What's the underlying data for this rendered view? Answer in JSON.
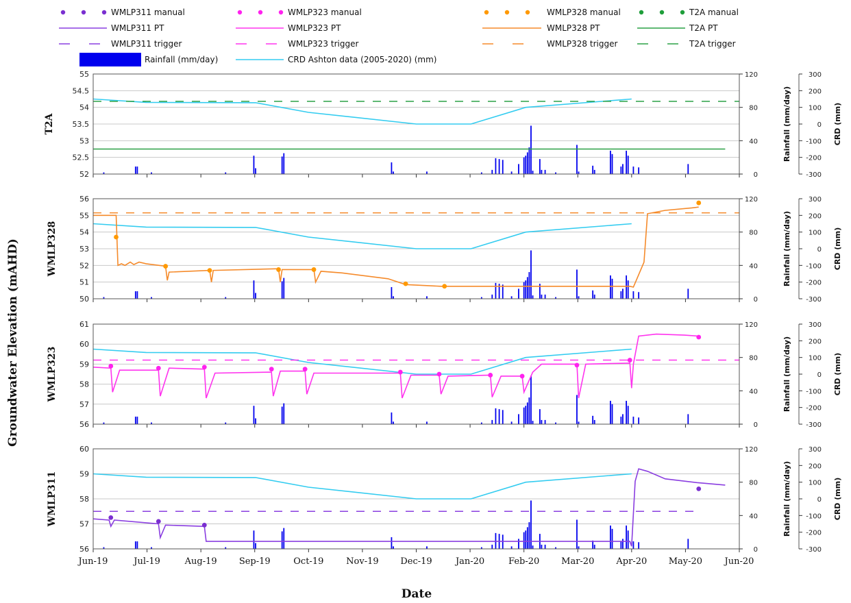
{
  "chart_data": {
    "type": "line",
    "ylabel": "Groundwater Elevation (mAHD)",
    "xlabel": "Date",
    "x_ticks": [
      "Jun-19",
      "Jul-19",
      "Aug-19",
      "Sep-19",
      "Oct-19",
      "Nov-19",
      "Dec-19",
      "Jan-20",
      "Feb-20",
      "Mar-20",
      "Apr-20",
      "May-20",
      "Jun-20"
    ],
    "x_range": [
      "2019-06-01",
      "2020-06-01"
    ],
    "right_axis_1": {
      "label": "Rainfall (mm/day)",
      "ylim": [
        0,
        120
      ],
      "ticks": [
        "0",
        "40",
        "80",
        "120"
      ]
    },
    "right_axis_2": {
      "label": "CRD (mm)",
      "ylim": [
        -300,
        300
      ],
      "ticks": [
        "-300",
        "-200",
        "-100",
        "0",
        "100",
        "200",
        "300"
      ]
    },
    "legend": [
      {
        "label": "WMLP311 manual",
        "kind": "dots",
        "color": "#7a2fd0"
      },
      {
        "label": "WMLP323 manual",
        "kind": "dots",
        "color": "#ff22ee"
      },
      {
        "label": "WMLP328 manual",
        "kind": "dots",
        "color": "#ff9900"
      },
      {
        "label": "T2A manual",
        "kind": "dots",
        "color": "#1e9e3a"
      },
      {
        "label": "WMLP311 PT",
        "kind": "line",
        "color": "#8a3ee0"
      },
      {
        "label": "WMLP323 PT",
        "kind": "line",
        "color": "#ff33ee"
      },
      {
        "label": "WMLP328 PT",
        "kind": "line",
        "color": "#f58a2a"
      },
      {
        "label": "T2A PT",
        "kind": "line",
        "color": "#2aa045"
      },
      {
        "label": "WMLP311 trigger",
        "kind": "dash",
        "color": "#8a3ee0"
      },
      {
        "label": "WMLP323 trigger",
        "kind": "dash",
        "color": "#ff33ee"
      },
      {
        "label": "WMLP328 trigger",
        "kind": "dash",
        "color": "#f58a2a"
      },
      {
        "label": "T2A trigger",
        "kind": "dash",
        "color": "#2aa045"
      },
      {
        "label": "Rainfall (mm/day)",
        "kind": "bar",
        "color": "#0000ee"
      },
      {
        "label": "CRD Ashton data (2005-2020) (mm)",
        "kind": "line",
        "color": "#33ccf0"
      }
    ],
    "rainfall": [
      [
        "2019-06-07",
        2
      ],
      [
        "2019-06-25",
        9
      ],
      [
        "2019-06-26",
        9
      ],
      [
        "2019-07-04",
        2
      ],
      [
        "2019-08-15",
        2
      ],
      [
        "2019-08-31",
        22
      ],
      [
        "2019-09-01",
        7
      ],
      [
        "2019-09-16",
        21
      ],
      [
        "2019-09-17",
        25
      ],
      [
        "2019-11-17",
        14
      ],
      [
        "2019-11-18",
        3
      ],
      [
        "2019-12-07",
        3
      ],
      [
        "2020-01-07",
        2
      ],
      [
        "2020-01-13",
        5
      ],
      [
        "2020-01-15",
        19
      ],
      [
        "2020-01-17",
        18
      ],
      [
        "2020-01-19",
        17
      ],
      [
        "2020-01-24",
        3
      ],
      [
        "2020-01-28",
        12
      ],
      [
        "2020-01-31",
        20
      ],
      [
        "2020-02-01",
        22
      ],
      [
        "2020-02-02",
        26
      ],
      [
        "2020-02-03",
        32
      ],
      [
        "2020-02-04",
        58
      ],
      [
        "2020-02-05",
        4
      ],
      [
        "2020-02-09",
        18
      ],
      [
        "2020-02-10",
        5
      ],
      [
        "2020-02-12",
        5
      ],
      [
        "2020-02-18",
        2
      ],
      [
        "2020-03-01",
        35
      ],
      [
        "2020-03-02",
        3
      ],
      [
        "2020-03-10",
        10
      ],
      [
        "2020-03-11",
        5
      ],
      [
        "2020-03-20",
        28
      ],
      [
        "2020-03-21",
        24
      ],
      [
        "2020-03-26",
        9
      ],
      [
        "2020-03-27",
        12
      ],
      [
        "2020-03-29",
        28
      ],
      [
        "2020-03-30",
        22
      ],
      [
        "2020-04-02",
        9
      ],
      [
        "2020-04-05",
        8
      ],
      [
        "2020-05-03",
        12
      ]
    ],
    "crd": [
      [
        "2019-06-01",
        150
      ],
      [
        "2019-07-01",
        130
      ],
      [
        "2019-09-01",
        128
      ],
      [
        "2019-10-01",
        70
      ],
      [
        "2019-12-01",
        0
      ],
      [
        "2020-01-01",
        0
      ],
      [
        "2020-02-01",
        100
      ],
      [
        "2020-04-01",
        150
      ]
    ],
    "panels": [
      {
        "name": "T2A",
        "ylabel": "T2A",
        "ylim": [
          52,
          55
        ],
        "yticks": [
          "52",
          "52.5",
          "53",
          "53.5",
          "54",
          "54.5",
          "55"
        ],
        "trigger": 54.18,
        "trigger_color": "#2aa045",
        "trigger_range": [
          "2019-06-01",
          "2020-06-01"
        ],
        "pt_color": "#2aa045",
        "pt": [
          [
            "2019-06-01",
            52.75
          ],
          [
            "2020-05-24",
            52.75
          ]
        ],
        "manual_color": "#1e9e3a",
        "manual": []
      },
      {
        "name": "WMLP328",
        "ylabel": "WMLP328",
        "ylim": [
          50,
          56
        ],
        "yticks": [
          "50",
          "51",
          "52",
          "53",
          "54",
          "55",
          "56"
        ],
        "trigger": 55.15,
        "trigger_color": "#f58a2a",
        "trigger_range": [
          "2019-06-01",
          "2020-06-01"
        ],
        "pt_color": "#f58a2a",
        "pt": [
          [
            "2019-06-01",
            55.0
          ],
          [
            "2019-06-14",
            55.0
          ],
          [
            "2019-06-15",
            52.0
          ],
          [
            "2019-06-17",
            52.1
          ],
          [
            "2019-06-19",
            52.0
          ],
          [
            "2019-06-22",
            52.2
          ],
          [
            "2019-06-24",
            52.05
          ],
          [
            "2019-06-27",
            52.2
          ],
          [
            "2019-07-01",
            52.1
          ],
          [
            "2019-07-12",
            51.95
          ],
          [
            "2019-07-13",
            51.1
          ],
          [
            "2019-07-14",
            51.6
          ],
          [
            "2019-08-06",
            51.7
          ],
          [
            "2019-08-07",
            51.0
          ],
          [
            "2019-08-08",
            51.7
          ],
          [
            "2019-09-14",
            51.8
          ],
          [
            "2019-09-15",
            51.0
          ],
          [
            "2019-09-16",
            51.75
          ],
          [
            "2019-10-04",
            51.75
          ],
          [
            "2019-10-05",
            51.0
          ],
          [
            "2019-10-08",
            51.65
          ],
          [
            "2019-10-20",
            51.55
          ],
          [
            "2019-11-15",
            51.2
          ],
          [
            "2019-11-25",
            50.85
          ],
          [
            "2019-12-15",
            50.75
          ],
          [
            "2020-03-31",
            50.75
          ],
          [
            "2020-04-02",
            50.7
          ],
          [
            "2020-04-04",
            51.2
          ],
          [
            "2020-04-08",
            52.2
          ],
          [
            "2020-04-10",
            55.1
          ],
          [
            "2020-04-20",
            55.3
          ],
          [
            "2020-05-05",
            55.45
          ],
          [
            "2020-05-09",
            55.5
          ]
        ],
        "manual_color": "#ff9900",
        "manual": [
          [
            "2019-06-14",
            53.7
          ],
          [
            "2019-07-12",
            51.95
          ],
          [
            "2019-08-06",
            51.7
          ],
          [
            "2019-09-14",
            51.75
          ],
          [
            "2019-10-04",
            51.75
          ],
          [
            "2019-11-25",
            50.9
          ],
          [
            "2019-12-17",
            50.75
          ],
          [
            "2020-05-09",
            55.75
          ]
        ]
      },
      {
        "name": "WMLP323",
        "ylabel": "WMLP323",
        "ylim": [
          56,
          61
        ],
        "yticks": [
          "56",
          "57",
          "58",
          "59",
          "60",
          "61"
        ],
        "trigger": 59.2,
        "trigger_color": "#ff33ee",
        "trigger_range": [
          "2019-06-01",
          "2020-06-01"
        ],
        "pt_color": "#ff33ee",
        "pt": [
          [
            "2019-06-01",
            58.85
          ],
          [
            "2019-06-11",
            58.8
          ],
          [
            "2019-06-12",
            57.6
          ],
          [
            "2019-06-16",
            58.7
          ],
          [
            "2019-07-08",
            58.7
          ],
          [
            "2019-07-09",
            57.4
          ],
          [
            "2019-07-14",
            58.8
          ],
          [
            "2019-08-03",
            58.75
          ],
          [
            "2019-08-04",
            57.3
          ],
          [
            "2019-08-09",
            58.55
          ],
          [
            "2019-09-10",
            58.6
          ],
          [
            "2019-09-11",
            57.4
          ],
          [
            "2019-09-15",
            58.65
          ],
          [
            "2019-09-29",
            58.65
          ],
          [
            "2019-09-30",
            57.5
          ],
          [
            "2019-10-04",
            58.55
          ],
          [
            "2019-11-22",
            58.55
          ],
          [
            "2019-11-23",
            57.3
          ],
          [
            "2019-11-28",
            58.45
          ],
          [
            "2019-12-14",
            58.45
          ],
          [
            "2019-12-15",
            57.5
          ],
          [
            "2019-12-19",
            58.4
          ],
          [
            "2020-01-12",
            58.45
          ],
          [
            "2020-01-13",
            57.35
          ],
          [
            "2020-01-18",
            58.4
          ],
          [
            "2020-01-30",
            58.4
          ],
          [
            "2020-01-31",
            57.6
          ],
          [
            "2020-02-05",
            58.6
          ],
          [
            "2020-02-10",
            59.0
          ],
          [
            "2020-03-01",
            59.0
          ],
          [
            "2020-03-02",
            57.3
          ],
          [
            "2020-03-06",
            59.0
          ],
          [
            "2020-03-31",
            59.05
          ],
          [
            "2020-04-01",
            57.8
          ],
          [
            "2020-04-02",
            59.0
          ],
          [
            "2020-04-05",
            60.4
          ],
          [
            "2020-04-15",
            60.5
          ],
          [
            "2020-05-01",
            60.45
          ],
          [
            "2020-05-09",
            60.4
          ]
        ],
        "manual_color": "#ff22ee",
        "manual": [
          [
            "2019-06-11",
            58.9
          ],
          [
            "2019-07-08",
            58.8
          ],
          [
            "2019-08-03",
            58.85
          ],
          [
            "2019-09-10",
            58.75
          ],
          [
            "2019-09-29",
            58.75
          ],
          [
            "2019-11-22",
            58.6
          ],
          [
            "2019-12-14",
            58.5
          ],
          [
            "2020-01-12",
            58.45
          ],
          [
            "2020-01-30",
            58.4
          ],
          [
            "2020-03-01",
            58.95
          ],
          [
            "2020-03-31",
            59.2
          ],
          [
            "2020-05-09",
            60.35
          ]
        ]
      },
      {
        "name": "WMLP311",
        "ylabel": "WMLP311",
        "ylim": [
          56,
          60
        ],
        "yticks": [
          "56",
          "57",
          "58",
          "59",
          "60"
        ],
        "trigger": 57.5,
        "trigger_color": "#8a3ee0",
        "trigger_range": [
          "2019-06-01",
          "2020-05-06"
        ],
        "pt_color": "#8a3ee0",
        "pt": [
          [
            "2019-06-01",
            57.2
          ],
          [
            "2019-06-10",
            57.15
          ],
          [
            "2019-06-11",
            56.9
          ],
          [
            "2019-06-13",
            57.15
          ],
          [
            "2019-07-08",
            57.0
          ],
          [
            "2019-07-09",
            56.45
          ],
          [
            "2019-07-12",
            56.95
          ],
          [
            "2019-08-03",
            56.9
          ],
          [
            "2019-08-04",
            56.3
          ],
          [
            "2020-03-31",
            56.3
          ],
          [
            "2020-04-01",
            56.1
          ],
          [
            "2020-04-03",
            58.7
          ],
          [
            "2020-04-05",
            59.2
          ],
          [
            "2020-04-10",
            59.1
          ],
          [
            "2020-04-20",
            58.8
          ],
          [
            "2020-05-08",
            58.65
          ],
          [
            "2020-05-24",
            58.55
          ]
        ],
        "manual_color": "#7a2fd0",
        "manual": [
          [
            "2019-06-11",
            57.25
          ],
          [
            "2019-07-08",
            57.1
          ],
          [
            "2019-08-03",
            56.95
          ],
          [
            "2020-05-09",
            58.4
          ]
        ]
      }
    ]
  }
}
